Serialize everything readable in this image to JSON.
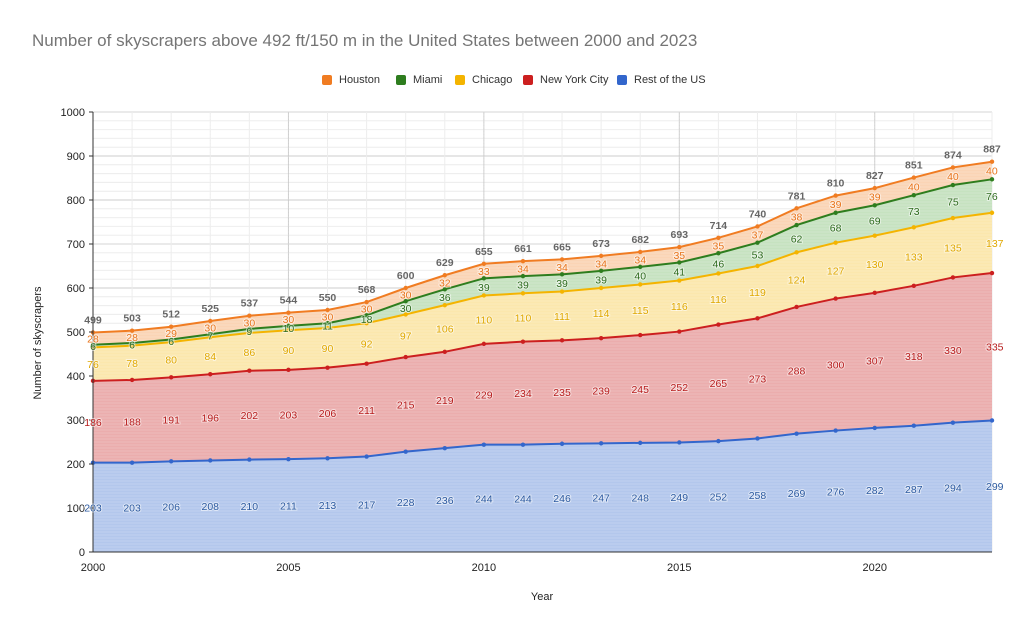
{
  "chart_data": {
    "type": "area",
    "stacked": true,
    "title": "Number of skyscrapers above 492 ft/150 m in the United States between 2000 and 2023",
    "xlabel": "Year",
    "ylabel": "Number of skyscrapers",
    "xlim": [
      2000,
      2023
    ],
    "ylim": [
      0,
      1000
    ],
    "x_ticks": [
      "2000",
      "2005",
      "2010",
      "2015",
      "2020"
    ],
    "y_ticks": [
      "0",
      "100",
      "200",
      "300",
      "400",
      "500",
      "600",
      "700",
      "800",
      "900",
      "1000"
    ],
    "grid": true,
    "legend_position": "top",
    "x": [
      2000,
      2001,
      2002,
      2003,
      2004,
      2005,
      2006,
      2007,
      2008,
      2009,
      2010,
      2011,
      2012,
      2013,
      2014,
      2015,
      2016,
      2017,
      2018,
      2019,
      2020,
      2021,
      2022,
      2023
    ],
    "series": [
      {
        "name": "Rest of the US",
        "color": "#3366cc",
        "fill": "#b3c7ec",
        "values": [
          203,
          203,
          206,
          208,
          210,
          211,
          213,
          217,
          228,
          236,
          244,
          244,
          246,
          247,
          248,
          249,
          252,
          258,
          269,
          276,
          282,
          287,
          294,
          299
        ]
      },
      {
        "name": "New York City",
        "color": "#cc1f1f",
        "fill": "#ebadad",
        "values": [
          186,
          188,
          191,
          196,
          202,
          203,
          206,
          211,
          215,
          219,
          229,
          234,
          235,
          239,
          245,
          252,
          265,
          273,
          288,
          300,
          307,
          318,
          330,
          335
        ]
      },
      {
        "name": "Chicago",
        "color": "#f4b400",
        "fill": "#fbe7ad",
        "values": [
          76,
          78,
          80,
          84,
          86,
          90,
          90,
          92,
          97,
          106,
          110,
          110,
          111,
          114,
          115,
          116,
          116,
          119,
          124,
          127,
          130,
          133,
          135,
          137
        ]
      },
      {
        "name": "Miami",
        "color": "#2e7d1e",
        "fill": "#c6e2c0",
        "values": [
          6,
          6,
          6,
          7,
          9,
          10,
          11,
          18,
          30,
          36,
          39,
          39,
          39,
          39,
          40,
          41,
          46,
          53,
          62,
          68,
          69,
          73,
          75,
          76
        ]
      },
      {
        "name": "Houston",
        "color": "#f07c22",
        "fill": "#fad4b5",
        "values": [
          28,
          28,
          29,
          30,
          30,
          30,
          30,
          30,
          30,
          32,
          33,
          34,
          34,
          34,
          34,
          35,
          35,
          37,
          38,
          39,
          39,
          40,
          40,
          40
        ]
      }
    ],
    "totals": [
      499,
      503,
      512,
      525,
      537,
      544,
      550,
      568,
      600,
      629,
      655,
      661,
      665,
      673,
      682,
      693,
      714,
      740,
      781,
      810,
      827,
      851,
      874,
      887
    ]
  },
  "legend": [
    {
      "label": "Houston",
      "color": "#f07c22"
    },
    {
      "label": "Miami",
      "color": "#2e7d1e"
    },
    {
      "label": "Chicago",
      "color": "#f4b400"
    },
    {
      "label": "New York City",
      "color": "#cc1f1f"
    },
    {
      "label": "Rest of the US",
      "color": "#3366cc"
    }
  ]
}
